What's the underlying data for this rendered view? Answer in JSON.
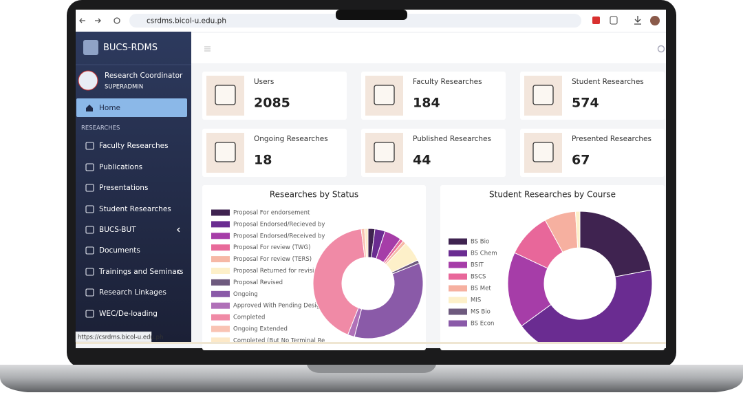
{
  "browser": {
    "url": "csrdms.bicol-u.edu.ph",
    "status_url": "https://csrdms.bicol-u.edu.ph"
  },
  "sidebar": {
    "brand": "BUCS-RDMS",
    "user_role": "Research Coordinator",
    "user_level": "SUPERADMIN",
    "home": "Home",
    "section": "RESEARCHES",
    "items": [
      "Faculty Researches",
      "Publications",
      "Presentations",
      "Student Researches",
      "BUCS-BUT",
      "Documents",
      "Trainings and Seminars",
      "Research Linkages",
      "WEC/De-loading"
    ]
  },
  "cards": [
    {
      "label": "Users",
      "value": 2085
    },
    {
      "label": "Faculty Researches",
      "value": 184
    },
    {
      "label": "Student Researches",
      "value": 574
    },
    {
      "label": "Ongoing Researches",
      "value": 18
    },
    {
      "label": "Published Researches",
      "value": 44
    },
    {
      "label": "Presented Researches",
      "value": 67
    }
  ],
  "charts": [
    {
      "type": "donut",
      "title": "Researches by Status",
      "categories": [
        "Proposal For endorsement",
        "Proposal Endorsed/Recieved by",
        "Proposal Endorsed/Received by",
        "Proposal For review (TWG)",
        "Proposal For review (TERS)",
        "Proposal Returned for revision",
        "Proposal Revised",
        "Ongoing",
        "Approved With Pending Designa",
        "Completed",
        "Ongoing Extended",
        "Completed (But No Terminal Re"
      ],
      "values": [
        2,
        3,
        5,
        1,
        1,
        6,
        1,
        35,
        2,
        42,
        1,
        1
      ],
      "colors": [
        "#3f2350",
        "#6a2c91",
        "#a63da8",
        "#e86a9a",
        "#f6b8a6",
        "#fdf0c9",
        "#6e5a7e",
        "#8a5aa8",
        "#b070b8",
        "#f08aa6",
        "#f9c3b3",
        "#fde9c8"
      ]
    },
    {
      "type": "donut",
      "title": "Student Researches by Course",
      "categories": [
        "BS Bio",
        "BS Chem",
        "BSIT",
        "BSCS",
        "BS Met",
        "MIS",
        "MS Bio",
        "BS Econ"
      ],
      "values": [
        22,
        43,
        17,
        10,
        7,
        1,
        0,
        0
      ],
      "colors": [
        "#3f2350",
        "#6a2c91",
        "#a63da8",
        "#e8679a",
        "#f6b0a0",
        "#fdf0c9",
        "#6e5a7e",
        "#8a5aa8"
      ]
    }
  ]
}
